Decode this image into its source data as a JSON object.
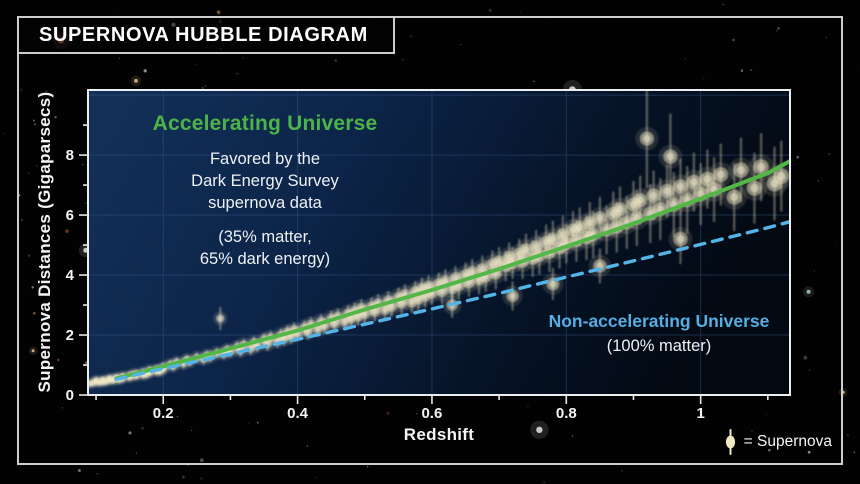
{
  "title": "SUPERNOVA HUBBLE DIAGRAM",
  "colors": {
    "accelerating_green": "#4cb348",
    "non_accelerating_blue": "#56aee2",
    "supernova_cream": "#f2e8c3",
    "plot_bg_left": "#133159",
    "plot_bg_right": "#030a14",
    "frame_border": "#cdcdcd",
    "grid_blue": "#3d5d8f",
    "background": "#020203"
  },
  "chart_data": {
    "type": "scatter",
    "title": "Supernova Hubble Diagram",
    "xlabel": "Redshift",
    "ylabel": "Supernova Distances (Gigaparsecs)",
    "xlim": [
      0.088,
      1.133
    ],
    "ylim": [
      0,
      10.17
    ],
    "grid": true,
    "legend_position": "bottom-right",
    "x_ticks": {
      "major": [
        0.2,
        0.4,
        0.6,
        0.8,
        1.0
      ],
      "labels": [
        "0.2",
        "0.4",
        "0.6",
        "0.8",
        "1"
      ],
      "minor": [
        0.1,
        0.3,
        0.5,
        0.7,
        0.9,
        1.1
      ]
    },
    "y_ticks": {
      "major": [
        0,
        2,
        4,
        6,
        8
      ],
      "labels": [
        "0",
        "2",
        "4",
        "6",
        "8"
      ],
      "minor": [
        1,
        3,
        5,
        7,
        9
      ]
    },
    "grid_y": [
      2,
      4,
      6,
      8,
      10
    ],
    "annotations": {
      "accelerating": {
        "heading": "Accelerating Universe",
        "body": "Favored by the\nDark Energy Survey\nsupernova data",
        "note": "(35% matter,\n65% dark energy)"
      },
      "non_accelerating": {
        "heading": "Non-accelerating Universe",
        "note": "(100% matter)"
      }
    },
    "legend": {
      "symbol": "supernova-point",
      "label": "= Supernova"
    },
    "series": [
      {
        "name": "Accelerating Universe (35% matter, 65% dark energy)",
        "type": "line",
        "style": "solid",
        "color": "#53b747",
        "points": [
          [
            0.13,
            0.55
          ],
          [
            0.2,
            0.95
          ],
          [
            0.3,
            1.55
          ],
          [
            0.4,
            2.15
          ],
          [
            0.5,
            2.85
          ],
          [
            0.6,
            3.5
          ],
          [
            0.7,
            4.2
          ],
          [
            0.8,
            4.95
          ],
          [
            0.9,
            5.72
          ],
          [
            1.0,
            6.55
          ],
          [
            1.1,
            7.4
          ],
          [
            1.133,
            7.8
          ]
        ]
      },
      {
        "name": "Non-accelerating Universe (100% matter)",
        "type": "line",
        "style": "dashed",
        "color": "#55b4e6",
        "points": [
          [
            0.13,
            0.52
          ],
          [
            0.2,
            0.88
          ],
          [
            0.3,
            1.37
          ],
          [
            0.4,
            1.86
          ],
          [
            0.5,
            2.36
          ],
          [
            0.6,
            2.87
          ],
          [
            0.7,
            3.39
          ],
          [
            0.8,
            3.93
          ],
          [
            0.9,
            4.47
          ],
          [
            1.0,
            5.02
          ],
          [
            1.1,
            5.58
          ],
          [
            1.133,
            5.78
          ]
        ]
      },
      {
        "name": "Dark Energy Survey supernovae",
        "type": "scatter",
        "color": "#f2e8c3",
        "points": [
          [
            0.09,
            0.38,
            0.08
          ],
          [
            0.095,
            0.4,
            0.08
          ],
          [
            0.1,
            0.45,
            0.07
          ],
          [
            0.1,
            0.48,
            0.09
          ],
          [
            0.105,
            0.42,
            0.09
          ],
          [
            0.11,
            0.5,
            0.08
          ],
          [
            0.11,
            0.44,
            0.08
          ],
          [
            0.115,
            0.46,
            0.1
          ],
          [
            0.12,
            0.55,
            0.08
          ],
          [
            0.12,
            0.5,
            0.09
          ],
          [
            0.125,
            0.49,
            0.09
          ],
          [
            0.13,
            0.58,
            0.08
          ],
          [
            0.13,
            0.54,
            0.09
          ],
          [
            0.135,
            0.52,
            0.1
          ],
          [
            0.14,
            0.62,
            0.09
          ],
          [
            0.14,
            0.57,
            0.1
          ],
          [
            0.15,
            0.6,
            0.1
          ],
          [
            0.15,
            0.64,
            0.09
          ],
          [
            0.155,
            0.68,
            0.09
          ],
          [
            0.16,
            0.65,
            0.1
          ],
          [
            0.16,
            0.7,
            0.1
          ],
          [
            0.17,
            0.75,
            0.1
          ],
          [
            0.17,
            0.68,
            0.11
          ],
          [
            0.175,
            0.7,
            0.11
          ],
          [
            0.18,
            0.82,
            0.1
          ],
          [
            0.18,
            0.76,
            0.1
          ],
          [
            0.19,
            0.85,
            0.11
          ],
          [
            0.19,
            0.8,
            0.1
          ],
          [
            0.195,
            0.8,
            0.12
          ],
          [
            0.2,
            0.88,
            0.11
          ],
          [
            0.2,
            0.92,
            0.12
          ],
          [
            0.21,
            1.02,
            0.11
          ],
          [
            0.215,
            0.96,
            0.13
          ],
          [
            0.22,
            1.1,
            0.12
          ],
          [
            0.23,
            1.05,
            0.14
          ],
          [
            0.235,
            1.18,
            0.12
          ],
          [
            0.24,
            1.12,
            0.13
          ],
          [
            0.25,
            1.25,
            0.14
          ],
          [
            0.26,
            1.2,
            0.15
          ],
          [
            0.265,
            1.32,
            0.13
          ],
          [
            0.27,
            1.28,
            0.15
          ],
          [
            0.28,
            1.4,
            0.14
          ],
          [
            0.285,
            2.55,
            0.35
          ],
          [
            0.29,
            1.38,
            0.16
          ],
          [
            0.295,
            1.5,
            0.15
          ],
          [
            0.3,
            1.45,
            0.16
          ],
          [
            0.31,
            1.6,
            0.16
          ],
          [
            0.315,
            1.48,
            0.17
          ],
          [
            0.32,
            1.68,
            0.16
          ],
          [
            0.33,
            1.55,
            0.18
          ],
          [
            0.335,
            1.75,
            0.17
          ],
          [
            0.34,
            1.65,
            0.18
          ],
          [
            0.35,
            1.85,
            0.17
          ],
          [
            0.355,
            1.7,
            0.19
          ],
          [
            0.36,
            1.92,
            0.18
          ],
          [
            0.37,
            1.8,
            0.2
          ],
          [
            0.375,
            2.0,
            0.18
          ],
          [
            0.38,
            1.88,
            0.2
          ],
          [
            0.385,
            2.1,
            0.19
          ],
          [
            0.39,
            1.95,
            0.21
          ],
          [
            0.395,
            2.18,
            0.2
          ],
          [
            0.4,
            2.05,
            0.21
          ],
          [
            0.41,
            2.25,
            0.2
          ],
          [
            0.415,
            2.1,
            0.22
          ],
          [
            0.42,
            2.35,
            0.21
          ],
          [
            0.43,
            2.2,
            0.23
          ],
          [
            0.435,
            2.45,
            0.21
          ],
          [
            0.44,
            2.3,
            0.24
          ],
          [
            0.45,
            2.55,
            0.22
          ],
          [
            0.455,
            2.38,
            0.25
          ],
          [
            0.46,
            2.62,
            0.23
          ],
          [
            0.47,
            2.45,
            0.26
          ],
          [
            0.475,
            2.72,
            0.24
          ],
          [
            0.48,
            2.55,
            0.27
          ],
          [
            0.485,
            2.8,
            0.25
          ],
          [
            0.49,
            2.62,
            0.28
          ],
          [
            0.495,
            2.9,
            0.26
          ],
          [
            0.5,
            2.7,
            0.28
          ],
          [
            0.51,
            2.95,
            0.27
          ],
          [
            0.515,
            2.78,
            0.3
          ],
          [
            0.52,
            3.05,
            0.28
          ],
          [
            0.53,
            2.85,
            0.31
          ],
          [
            0.535,
            3.15,
            0.29
          ],
          [
            0.54,
            2.95,
            0.32
          ],
          [
            0.55,
            3.25,
            0.3
          ],
          [
            0.555,
            3.05,
            0.33
          ],
          [
            0.56,
            3.35,
            0.31
          ],
          [
            0.57,
            3.1,
            0.34
          ],
          [
            0.575,
            3.45,
            0.32
          ],
          [
            0.58,
            3.2,
            0.35
          ],
          [
            0.585,
            3.55,
            0.33
          ],
          [
            0.59,
            3.3,
            0.36
          ],
          [
            0.595,
            3.62,
            0.34
          ],
          [
            0.6,
            3.4,
            0.36
          ],
          [
            0.61,
            3.7,
            0.35
          ],
          [
            0.615,
            3.45,
            0.38
          ],
          [
            0.62,
            3.8,
            0.36
          ],
          [
            0.63,
            3.55,
            0.4
          ],
          [
            0.63,
            3.0,
            0.4
          ],
          [
            0.635,
            3.9,
            0.37
          ],
          [
            0.64,
            3.65,
            0.42
          ],
          [
            0.65,
            4.0,
            0.38
          ],
          [
            0.655,
            3.75,
            0.44
          ],
          [
            0.66,
            4.1,
            0.4
          ],
          [
            0.67,
            3.85,
            0.46
          ],
          [
            0.675,
            4.2,
            0.42
          ],
          [
            0.68,
            3.95,
            0.48
          ],
          [
            0.69,
            4.35,
            0.44
          ],
          [
            0.695,
            4.05,
            0.5
          ],
          [
            0.7,
            4.45,
            0.45
          ],
          [
            0.71,
            4.3,
            0.48
          ],
          [
            0.715,
            4.6,
            0.45
          ],
          [
            0.72,
            4.4,
            0.5
          ],
          [
            0.72,
            3.3,
            0.45
          ],
          [
            0.73,
            4.7,
            0.47
          ],
          [
            0.735,
            4.45,
            0.55
          ],
          [
            0.74,
            4.85,
            0.5
          ],
          [
            0.75,
            4.55,
            0.58
          ],
          [
            0.755,
            4.95,
            0.52
          ],
          [
            0.76,
            4.65,
            0.6
          ],
          [
            0.77,
            5.1,
            0.55
          ],
          [
            0.775,
            4.75,
            0.62
          ],
          [
            0.78,
            5.2,
            0.58
          ],
          [
            0.78,
            3.7,
            0.5
          ],
          [
            0.79,
            4.9,
            0.65
          ],
          [
            0.795,
            5.35,
            0.6
          ],
          [
            0.8,
            5.05,
            0.62
          ],
          [
            0.81,
            5.5,
            0.6
          ],
          [
            0.815,
            5.15,
            0.68
          ],
          [
            0.82,
            5.6,
            0.62
          ],
          [
            0.83,
            5.25,
            0.72
          ],
          [
            0.835,
            5.75,
            0.65
          ],
          [
            0.84,
            5.35,
            0.75
          ],
          [
            0.85,
            5.9,
            0.68
          ],
          [
            0.85,
            4.3,
            0.55
          ],
          [
            0.86,
            5.5,
            0.78
          ],
          [
            0.87,
            6.05,
            0.7
          ],
          [
            0.875,
            5.6,
            0.82
          ],
          [
            0.88,
            6.2,
            0.72
          ],
          [
            0.89,
            5.75,
            0.85
          ],
          [
            0.9,
            6.35,
            0.75
          ],
          [
            0.905,
            5.9,
            0.9
          ],
          [
            0.91,
            6.5,
            0.78
          ],
          [
            0.92,
            8.55,
            1.6
          ],
          [
            0.925,
            6.05,
            0.95
          ],
          [
            0.93,
            6.65,
            0.8
          ],
          [
            0.94,
            6.2,
            1.0
          ],
          [
            0.95,
            6.8,
            0.85
          ],
          [
            0.955,
            7.95,
            1.4
          ],
          [
            0.96,
            6.35,
            1.05
          ],
          [
            0.97,
            6.95,
            0.9
          ],
          [
            0.97,
            5.2,
            0.8
          ],
          [
            0.98,
            6.5,
            1.1
          ],
          [
            0.99,
            7.1,
            0.95
          ],
          [
            1.0,
            6.7,
            1.0
          ],
          [
            1.01,
            7.2,
            0.95
          ],
          [
            1.02,
            6.85,
            1.05
          ],
          [
            1.03,
            7.35,
            1.0
          ],
          [
            1.05,
            6.6,
            1.1
          ],
          [
            1.06,
            7.5,
            1.05
          ],
          [
            1.08,
            6.9,
            1.15
          ],
          [
            1.09,
            7.6,
            1.1
          ],
          [
            1.11,
            7.05,
            1.2
          ],
          [
            1.12,
            7.3,
            1.15
          ]
        ]
      }
    ]
  }
}
